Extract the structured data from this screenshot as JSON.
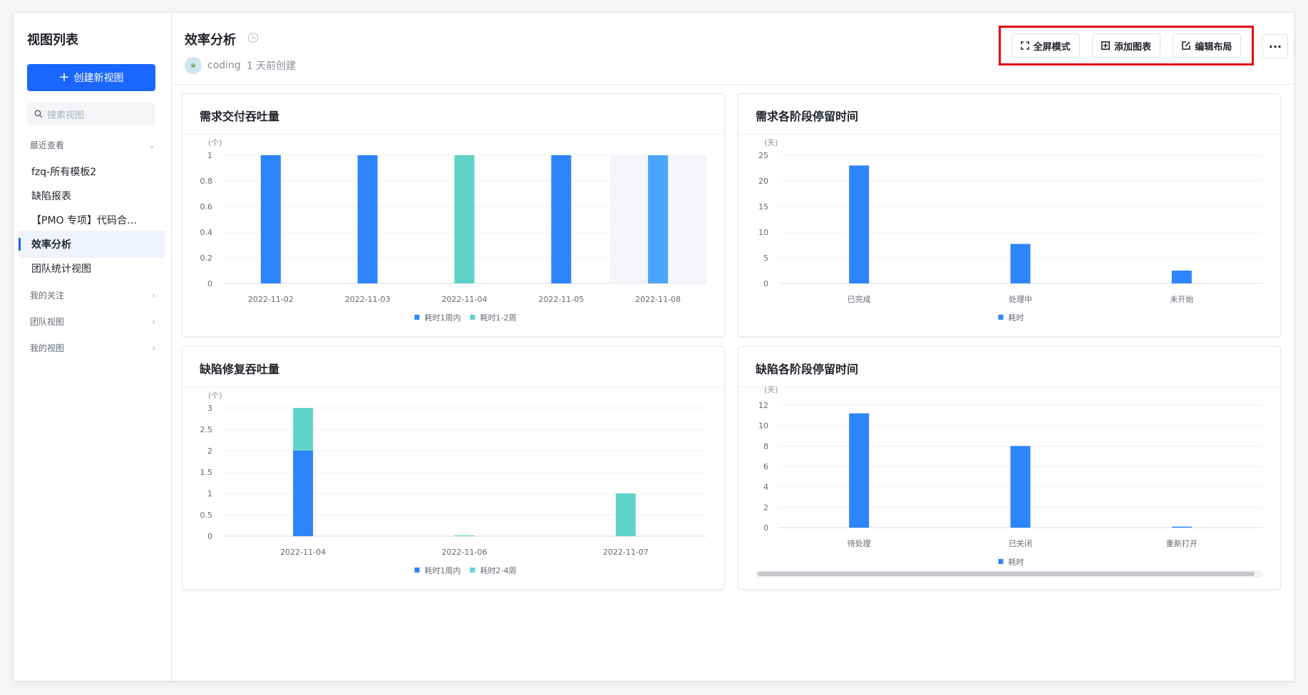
{
  "sidebar": {
    "title": "视图列表",
    "create_label": "创建新视图",
    "search_placeholder": "搜索视图",
    "recent_label": "最近查看",
    "items": [
      {
        "label": "fzq-所有模板2"
      },
      {
        "label": "缺陷报表"
      },
      {
        "label": "【PMO 专项】代码合…"
      },
      {
        "label": "效率分析",
        "active": true
      },
      {
        "label": "团队统计视图"
      }
    ],
    "groups": [
      {
        "label": "我的关注"
      },
      {
        "label": "团队视图"
      },
      {
        "label": "我的视图"
      }
    ]
  },
  "header": {
    "title": "效率分析",
    "user": "coding",
    "created": "1 天前创建",
    "fullscreen_label": "全屏模式",
    "add_chart_label": "添加图表",
    "edit_layout_label": "编辑布局",
    "more_label": "···"
  },
  "colors": {
    "blue": "#2d84fb",
    "teal": "#5fd3c9",
    "light_blue": "#4ca5fb",
    "accent": "#1a66ff"
  },
  "chart_data": [
    {
      "title": "需求交付吞吐量",
      "type": "bar",
      "unit_label": "(个)",
      "categories": [
        "2022-11-02",
        "2022-11-03",
        "2022-11-04",
        "2022-11-05",
        "2022-11-08"
      ],
      "series": [
        {
          "name": "耗时1周内",
          "color": "#2d84fb",
          "values": [
            1,
            1,
            0,
            1,
            1
          ]
        },
        {
          "name": "耗时1-2周",
          "color": "#5fd3c9",
          "values": [
            0,
            0,
            1,
            0,
            0
          ]
        }
      ],
      "ylim": [
        0,
        1
      ],
      "yticks": [
        "0",
        "0.2",
        "0.4",
        "0.6",
        "0.8",
        "1"
      ],
      "highlight_index": 4
    },
    {
      "title": "需求各阶段停留时间",
      "type": "bar",
      "unit_label": "(天)",
      "categories": [
        "已完成",
        "处理中",
        "未开始"
      ],
      "series": [
        {
          "name": "耗时",
          "color": "#2d84fb",
          "values": [
            23,
            7.7,
            2.5
          ]
        }
      ],
      "ylim": [
        0,
        25
      ],
      "yticks": [
        "0",
        "5",
        "10",
        "15",
        "20",
        "25"
      ]
    },
    {
      "title": "缺陷修复吞吐量",
      "type": "bar",
      "unit_label": "(个)",
      "categories": [
        "2022-11-04",
        "2022-11-06",
        "2022-11-07"
      ],
      "series": [
        {
          "name": "耗时1周内",
          "color": "#2d84fb",
          "values": [
            2,
            0,
            0
          ]
        },
        {
          "name": "耗时2-4周",
          "color": "#5fd3c9",
          "values": [
            1,
            0.02,
            1
          ]
        }
      ],
      "ylim": [
        0,
        3
      ],
      "yticks": [
        "0",
        "0.5",
        "1",
        "1.5",
        "2",
        "2.5",
        "3"
      ]
    },
    {
      "title": "缺陷各阶段停留时间",
      "type": "bar",
      "unit_label": "(天)",
      "categories": [
        "待处理",
        "已关闭",
        "重新打开"
      ],
      "series": [
        {
          "name": "耗时",
          "color": "#2d84fb",
          "values": [
            11.2,
            8,
            0.1
          ]
        }
      ],
      "ylim": [
        0,
        12
      ],
      "yticks": [
        "0",
        "2",
        "4",
        "6",
        "8",
        "10",
        "12"
      ]
    }
  ]
}
